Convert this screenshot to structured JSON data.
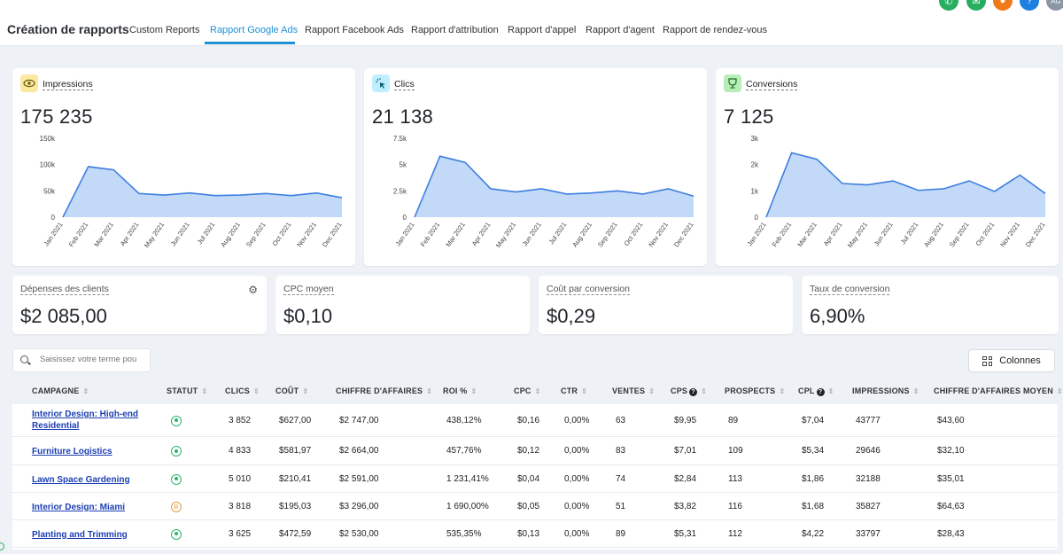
{
  "header": {
    "title": "Création de rapports",
    "tabs": [
      {
        "label": "Custom Reports"
      },
      {
        "label": "Rapport Google Ads"
      },
      {
        "label": "Rapport Facebook Ads"
      },
      {
        "label": "Rapport d'attribution"
      },
      {
        "label": "Rapport d'appel"
      },
      {
        "label": "Rapport d'agent"
      },
      {
        "label": "Rapport de rendez-vous"
      }
    ],
    "active_tab": "Rapport Google Ads",
    "avatar": "AG"
  },
  "months": [
    "Jan 2021",
    "Feb 2021",
    "Mar 2021",
    "Apr 2021",
    "May 2021",
    "Jun 2021",
    "Jul 2021",
    "Aug 2021",
    "Sep 2021",
    "Oct 2021",
    "Nov 2021",
    "Dec 2021"
  ],
  "metrics": [
    {
      "title": "Impressions",
      "value": "175 235",
      "icon": "eye-icon",
      "chip_color": "#fbe9a0",
      "chart_data": {
        "type": "area",
        "x": [
          "Jan 2021",
          "Feb 2021",
          "Mar 2021",
          "Apr 2021",
          "May 2021",
          "Jun 2021",
          "Jul 2021",
          "Aug 2021",
          "Sep 2021",
          "Oct 2021",
          "Nov 2021",
          "Dec 2021"
        ],
        "values": [
          0,
          96000,
          90000,
          45000,
          42000,
          46000,
          41000,
          42000,
          45000,
          41000,
          46000,
          37000
        ],
        "ylim": [
          0,
          150000
        ],
        "yticks": [
          "0",
          "50k",
          "100k",
          "150k"
        ]
      }
    },
    {
      "title": "Clics",
      "value": "21 138",
      "icon": "cursor-click-icon",
      "chip_color": "#bfefff",
      "chart_data": {
        "type": "area",
        "x": [
          "Jan 2021",
          "Feb 2021",
          "Mar 2021",
          "Apr 2021",
          "May 2021",
          "Jun 2021",
          "Jul 2021",
          "Aug 2021",
          "Sep 2021",
          "Oct 2021",
          "Nov 2021",
          "Dec 2021"
        ],
        "values": [
          0,
          5800,
          5200,
          2700,
          2400,
          2700,
          2200,
          2300,
          2500,
          2200,
          2700,
          2000
        ],
        "ylim": [
          0,
          7500
        ],
        "yticks": [
          "0",
          "2.5k",
          "5k",
          "7.5k"
        ]
      }
    },
    {
      "title": "Conversions",
      "value": "7 125",
      "icon": "trophy-icon",
      "chip_color": "#b8ecb8",
      "chart_data": {
        "type": "area",
        "x": [
          "Jan 2021",
          "Feb 2021",
          "Mar 2021",
          "Apr 2021",
          "May 2021",
          "Jun 2021",
          "Jul 2021",
          "Aug 2021",
          "Sep 2021",
          "Oct 2021",
          "Nov 2021",
          "Dec 2021"
        ],
        "values": [
          0,
          2450,
          2200,
          1280,
          1230,
          1380,
          1020,
          1080,
          1380,
          980,
          1600,
          900
        ],
        "ylim": [
          0,
          3000
        ],
        "yticks": [
          "0",
          "1k",
          "2k",
          "3k"
        ]
      }
    }
  ],
  "kpis": [
    {
      "title": "Dépenses des clients",
      "value": "$2 085,00",
      "has_gear": true
    },
    {
      "title": "CPC moyen",
      "value": "$0,10"
    },
    {
      "title": "Coût par conversion",
      "value": "$0,29"
    },
    {
      "title": "Taux de conversion",
      "value": "6,90%"
    }
  ],
  "search": {
    "placeholder": "Saisissez votre terme pou"
  },
  "columns_button": "Colonnes",
  "table": {
    "headers": [
      "CAMPAGNE",
      "STATUT",
      "CLICS",
      "COÛT",
      "CHIFFRE D'AFFAIRES",
      "ROI %",
      "CPC",
      "CTR",
      "VENTES",
      "CPS",
      "PROSPECTS",
      "CPL",
      "IMPRESSIONS",
      "CHIFFRE D'AFFAIRES MOYEN"
    ],
    "rows": [
      {
        "campaign": "Interior Design: High-end Residential",
        "status": "active",
        "clics": "3 852",
        "cout": "$627,00",
        "ca": "$2 747,00",
        "roi": "438,12%",
        "cpc": "$0,16",
        "ctr": "0,00%",
        "ventes": "63",
        "cps": "$9,95",
        "prospects": "89",
        "cpl": "$7,04",
        "impressions": "43777",
        "ca_moyen": "$43,60"
      },
      {
        "campaign": "Furniture Logistics",
        "status": "active",
        "clics": "4 833",
        "cout": "$581,97",
        "ca": "$2 664,00",
        "roi": "457,76%",
        "cpc": "$0,12",
        "ctr": "0,00%",
        "ventes": "83",
        "cps": "$7,01",
        "prospects": "109",
        "cpl": "$5,34",
        "impressions": "29646",
        "ca_moyen": "$32,10"
      },
      {
        "campaign": "Lawn Space Gardening",
        "status": "active",
        "clics": "5 010",
        "cout": "$210,41",
        "ca": "$2 591,00",
        "roi": "1 231,41%",
        "cpc": "$0,04",
        "ctr": "0,00%",
        "ventes": "74",
        "cps": "$2,84",
        "prospects": "113",
        "cpl": "$1,86",
        "impressions": "32188",
        "ca_moyen": "$35,01"
      },
      {
        "campaign": "Interior Design: Miami",
        "status": "paused",
        "clics": "3 818",
        "cout": "$195,03",
        "ca": "$3 296,00",
        "roi": "1 690,00%",
        "cpc": "$0,05",
        "ctr": "0,00%",
        "ventes": "51",
        "cps": "$3,82",
        "prospects": "116",
        "cpl": "$1,68",
        "impressions": "35827",
        "ca_moyen": "$64,63"
      },
      {
        "campaign": "Planting and Trimming",
        "status": "active",
        "clics": "3 625",
        "cout": "$472,59",
        "ca": "$2 530,00",
        "roi": "535,35%",
        "cpc": "$0,13",
        "ctr": "0,00%",
        "ventes": "89",
        "cps": "$5,31",
        "prospects": "112",
        "cpl": "$4,22",
        "impressions": "33797",
        "ca_moyen": "$28,43"
      }
    ]
  },
  "colors": {
    "accent": "#1f8fd6",
    "chart_line": "#3d7fe0",
    "chart_fill": "#b9d2f7",
    "active": "#2db56a",
    "paused": "#e89a3c"
  }
}
